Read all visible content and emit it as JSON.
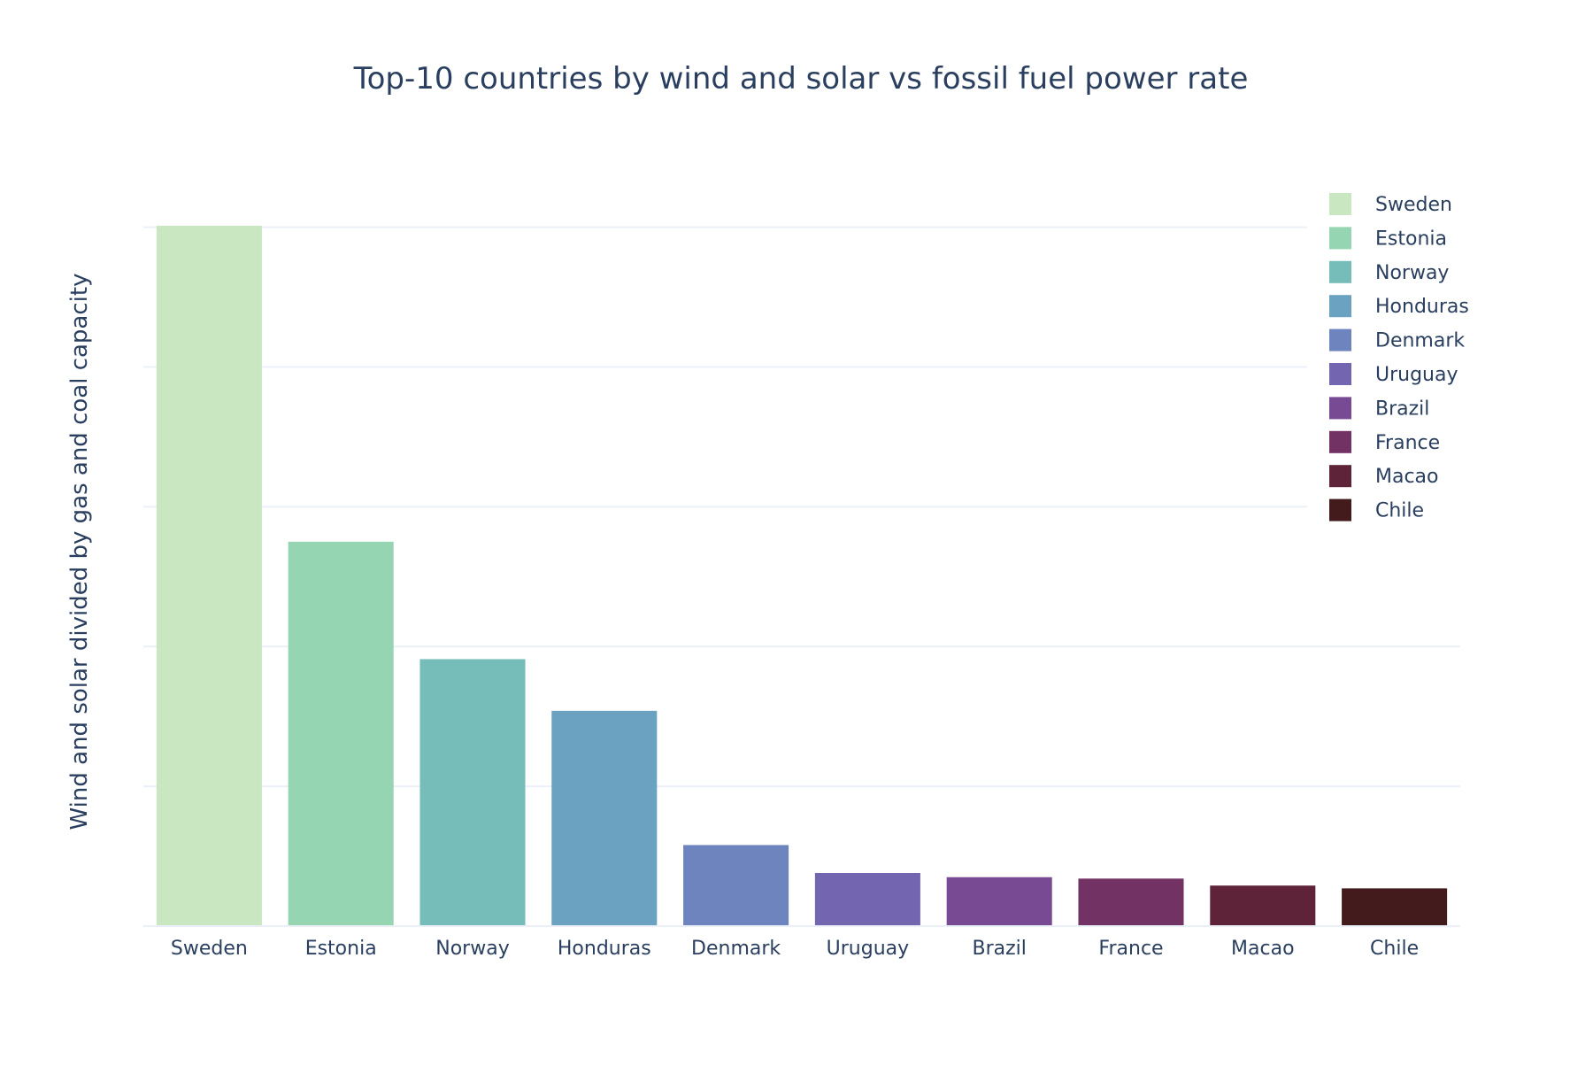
{
  "chart_data": {
    "type": "bar",
    "title": "Top-10 countries by wind and solar vs fossil fuel power rate",
    "xlabel": "",
    "ylabel": "Wind and solar divided by gas and coal capacity",
    "categories": [
      "Sweden",
      "Estonia",
      "Norway",
      "Honduras",
      "Denmark",
      "Uruguay",
      "Brazil",
      "France",
      "Macao",
      "Chile"
    ],
    "values": [
      5.01,
      2.75,
      1.91,
      1.54,
      0.58,
      0.38,
      0.35,
      0.34,
      0.29,
      0.27
    ],
    "colors": [
      "#c9e7c1",
      "#95d5b2",
      "#76bcb9",
      "#6ba2c2",
      "#6d84be",
      "#7465b0",
      "#784a94",
      "#723264",
      "#5f2339",
      "#431b1d"
    ],
    "ylim": [
      0,
      5.2
    ],
    "y_gridlines": [
      0,
      1,
      2,
      3,
      4,
      5
    ],
    "y_tick_labels_shown": false,
    "grid": true,
    "legend": {
      "placement": "top-right",
      "entries": [
        "Sweden",
        "Estonia",
        "Norway",
        "Honduras",
        "Denmark",
        "Uruguay",
        "Brazil",
        "France",
        "Macao",
        "Chile"
      ]
    }
  }
}
